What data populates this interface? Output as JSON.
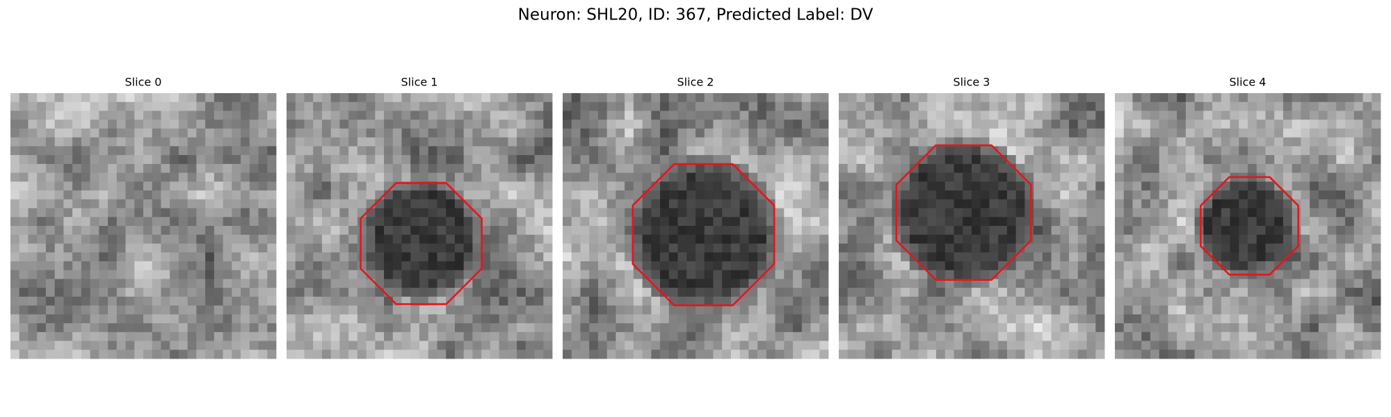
{
  "header": {
    "title": "Neuron: SHL20, ID: 367, Predicted Label: DV"
  },
  "panels": [
    {
      "title": "Slice 0"
    },
    {
      "title": "Slice 1"
    },
    {
      "title": "Slice 2"
    },
    {
      "title": "Slice 3"
    },
    {
      "title": "Slice 4"
    }
  ]
}
